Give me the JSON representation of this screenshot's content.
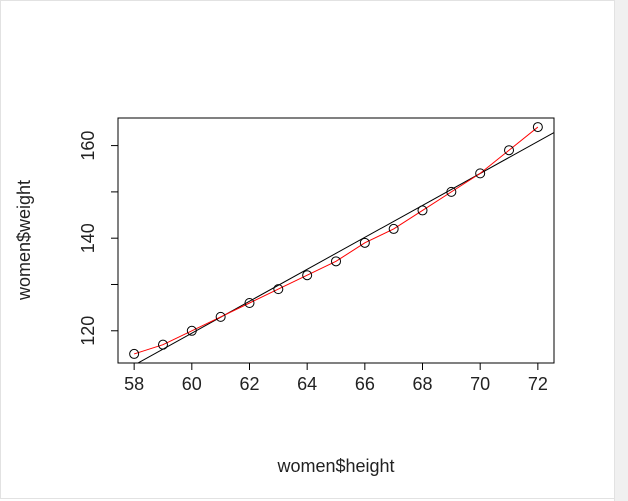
{
  "chart_data": {
    "type": "scatter",
    "title": "",
    "xlabel": "women$height",
    "ylabel": "women$weight",
    "xlim": [
      58,
      72
    ],
    "ylim": [
      115,
      164
    ],
    "x_ticks": [
      "58",
      "60",
      "62",
      "64",
      "66",
      "68",
      "70",
      "72"
    ],
    "y_ticks": [
      "120",
      "140",
      "160"
    ],
    "points": {
      "x": [
        58,
        59,
        60,
        61,
        62,
        63,
        64,
        65,
        66,
        67,
        68,
        69,
        70,
        71,
        72
      ],
      "y": [
        115,
        117,
        120,
        123,
        126,
        129,
        132,
        135,
        139,
        142,
        146,
        150,
        154,
        159,
        164
      ]
    },
    "regression_line": {
      "intercept": -87.52,
      "slope": 3.45,
      "color": "#000000"
    },
    "smooth_line_color": "#ff0000",
    "point_color": "#000000",
    "grid": false
  }
}
